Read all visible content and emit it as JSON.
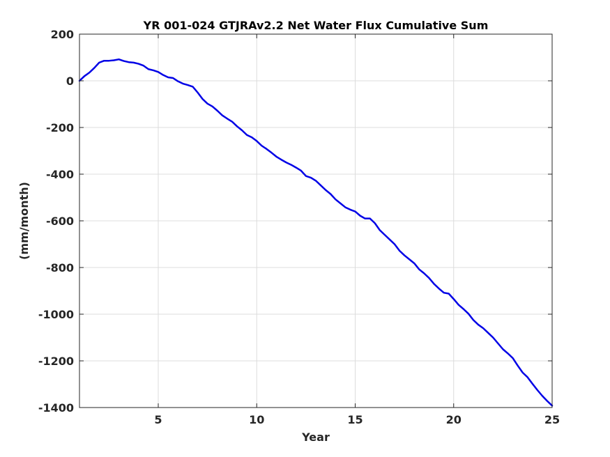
{
  "chart_data": {
    "type": "line",
    "title": "YR 001-024 GTJRAv2.2 Net Water Flux Cumulative Sum",
    "xlabel": "Year",
    "ylabel": "(mm/month)",
    "xlim": [
      1,
      25
    ],
    "ylim": [
      -1400,
      200
    ],
    "xticks": [
      5,
      10,
      15,
      20,
      25
    ],
    "yticks": [
      200,
      0,
      -200,
      -400,
      -600,
      -800,
      -1000,
      -1200,
      -1400
    ],
    "xtick_labels": [
      "5",
      "10",
      "15",
      "20",
      "25"
    ],
    "ytick_labels": [
      "200",
      "0",
      "-200",
      "-400",
      "-600",
      "-800",
      "-1000",
      "-1200",
      "-1400"
    ],
    "grid": true,
    "series": [
      {
        "color": "#0000e6",
        "x": [
          1.0,
          1.25,
          1.5,
          1.75,
          2.0,
          2.25,
          2.5,
          2.75,
          3.0,
          3.25,
          3.5,
          3.75,
          4.0,
          4.25,
          4.5,
          4.75,
          5.0,
          5.25,
          5.5,
          5.75,
          6.0,
          6.25,
          6.5,
          6.75,
          7.0,
          7.25,
          7.5,
          7.75,
          8.0,
          8.25,
          8.5,
          8.75,
          9.0,
          9.25,
          9.5,
          9.75,
          10.0,
          10.25,
          10.5,
          10.75,
          11.0,
          11.25,
          11.5,
          11.75,
          12.0,
          12.25,
          12.5,
          12.75,
          13.0,
          13.25,
          13.5,
          13.75,
          14.0,
          14.25,
          14.5,
          14.75,
          15.0,
          15.25,
          15.5,
          15.75,
          16.0,
          16.25,
          16.5,
          16.75,
          17.0,
          17.25,
          17.5,
          17.75,
          18.0,
          18.25,
          18.5,
          18.75,
          19.0,
          19.25,
          19.5,
          19.75,
          20.0,
          20.25,
          20.5,
          20.75,
          21.0,
          21.25,
          21.5,
          21.75,
          22.0,
          22.25,
          22.5,
          22.75,
          23.0,
          23.25,
          23.5,
          23.75,
          24.0,
          24.25,
          24.5,
          24.75,
          25.0
        ],
        "y": [
          0,
          20,
          35,
          55,
          78,
          86,
          86,
          88,
          92,
          85,
          80,
          78,
          73,
          65,
          50,
          45,
          38,
          25,
          15,
          12,
          -2,
          -12,
          -18,
          -25,
          -50,
          -78,
          -98,
          -110,
          -128,
          -148,
          -162,
          -175,
          -195,
          -212,
          -232,
          -242,
          -258,
          -278,
          -292,
          -308,
          -325,
          -338,
          -350,
          -360,
          -372,
          -385,
          -408,
          -415,
          -428,
          -448,
          -468,
          -485,
          -508,
          -525,
          -542,
          -552,
          -560,
          -578,
          -590,
          -590,
          -610,
          -640,
          -660,
          -680,
          -700,
          -728,
          -748,
          -765,
          -782,
          -808,
          -825,
          -845,
          -870,
          -890,
          -908,
          -912,
          -935,
          -960,
          -978,
          -998,
          -1025,
          -1045,
          -1060,
          -1080,
          -1100,
          -1125,
          -1150,
          -1168,
          -1188,
          -1220,
          -1250,
          -1270,
          -1298,
          -1325,
          -1350,
          -1372,
          -1392
        ]
      }
    ]
  }
}
